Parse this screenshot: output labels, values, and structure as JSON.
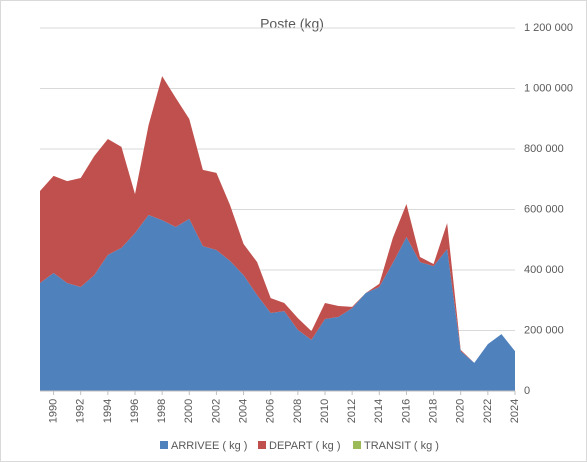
{
  "chart_data": {
    "type": "stacked_area",
    "title": "Poste (kg)",
    "x": [
      1989,
      1990,
      1991,
      1992,
      1993,
      1994,
      1995,
      1996,
      1997,
      1998,
      1999,
      2000,
      2001,
      2002,
      2003,
      2004,
      2005,
      2006,
      2007,
      2008,
      2009,
      2010,
      2011,
      2012,
      2013,
      2014,
      2015,
      2016,
      2017,
      2018,
      2019,
      2020,
      2021,
      2022,
      2023,
      2024
    ],
    "xlim": [
      1989,
      2024
    ],
    "xticks": [
      1990,
      1992,
      1994,
      1996,
      1998,
      2000,
      2002,
      2004,
      2006,
      2008,
      2010,
      2012,
      2014,
      2016,
      2018,
      2020,
      2022,
      2024
    ],
    "series": [
      {
        "name": "ARRIVEE ( kg )",
        "color": "#4f81bd",
        "values": [
          357000,
          390000,
          357000,
          344000,
          383000,
          450000,
          473000,
          522000,
          582000,
          565000,
          542000,
          569000,
          479000,
          466000,
          430000,
          383000,
          317000,
          258000,
          264000,
          202000,
          169000,
          238000,
          245000,
          274000,
          324000,
          344000,
          423000,
          509000,
          426000,
          413000,
          469000,
          132000,
          93000,
          155000,
          188000,
          132000
        ]
      },
      {
        "name": "DEPART ( kg )",
        "color": "#c0504d",
        "values": [
          304000,
          321000,
          337000,
          360000,
          394000,
          383000,
          334000,
          129000,
          297000,
          476000,
          427000,
          330000,
          252000,
          255000,
          185000,
          103000,
          109000,
          49000,
          27000,
          39000,
          29000,
          53000,
          36000,
          4000,
          0,
          10000,
          83000,
          109000,
          17000,
          7000,
          86000,
          4000,
          0,
          0,
          0,
          0
        ]
      },
      {
        "name": "TRANSIT ( kg )",
        "color": "#9bbb59",
        "values": [
          0,
          0,
          0,
          0,
          0,
          0,
          0,
          0,
          0,
          0,
          0,
          0,
          0,
          0,
          0,
          0,
          0,
          0,
          0,
          0,
          0,
          0,
          0,
          0,
          0,
          0,
          0,
          0,
          0,
          0,
          0,
          0,
          0,
          0,
          0,
          0
        ]
      }
    ],
    "ylim": [
      0,
      1200000
    ],
    "yticks": [
      0,
      {
        "value": 200000,
        "label": "200 000"
      },
      {
        "value": 400000,
        "label": "400 000"
      },
      {
        "value": 600000,
        "label": "600 000"
      },
      {
        "value": 800000,
        "label": "800 000"
      },
      {
        "value": 1000000,
        "label": "1 000 000"
      },
      {
        "value": 1200000,
        "label": "1 200 000"
      }
    ],
    "grid": true,
    "legend": "bottom"
  }
}
